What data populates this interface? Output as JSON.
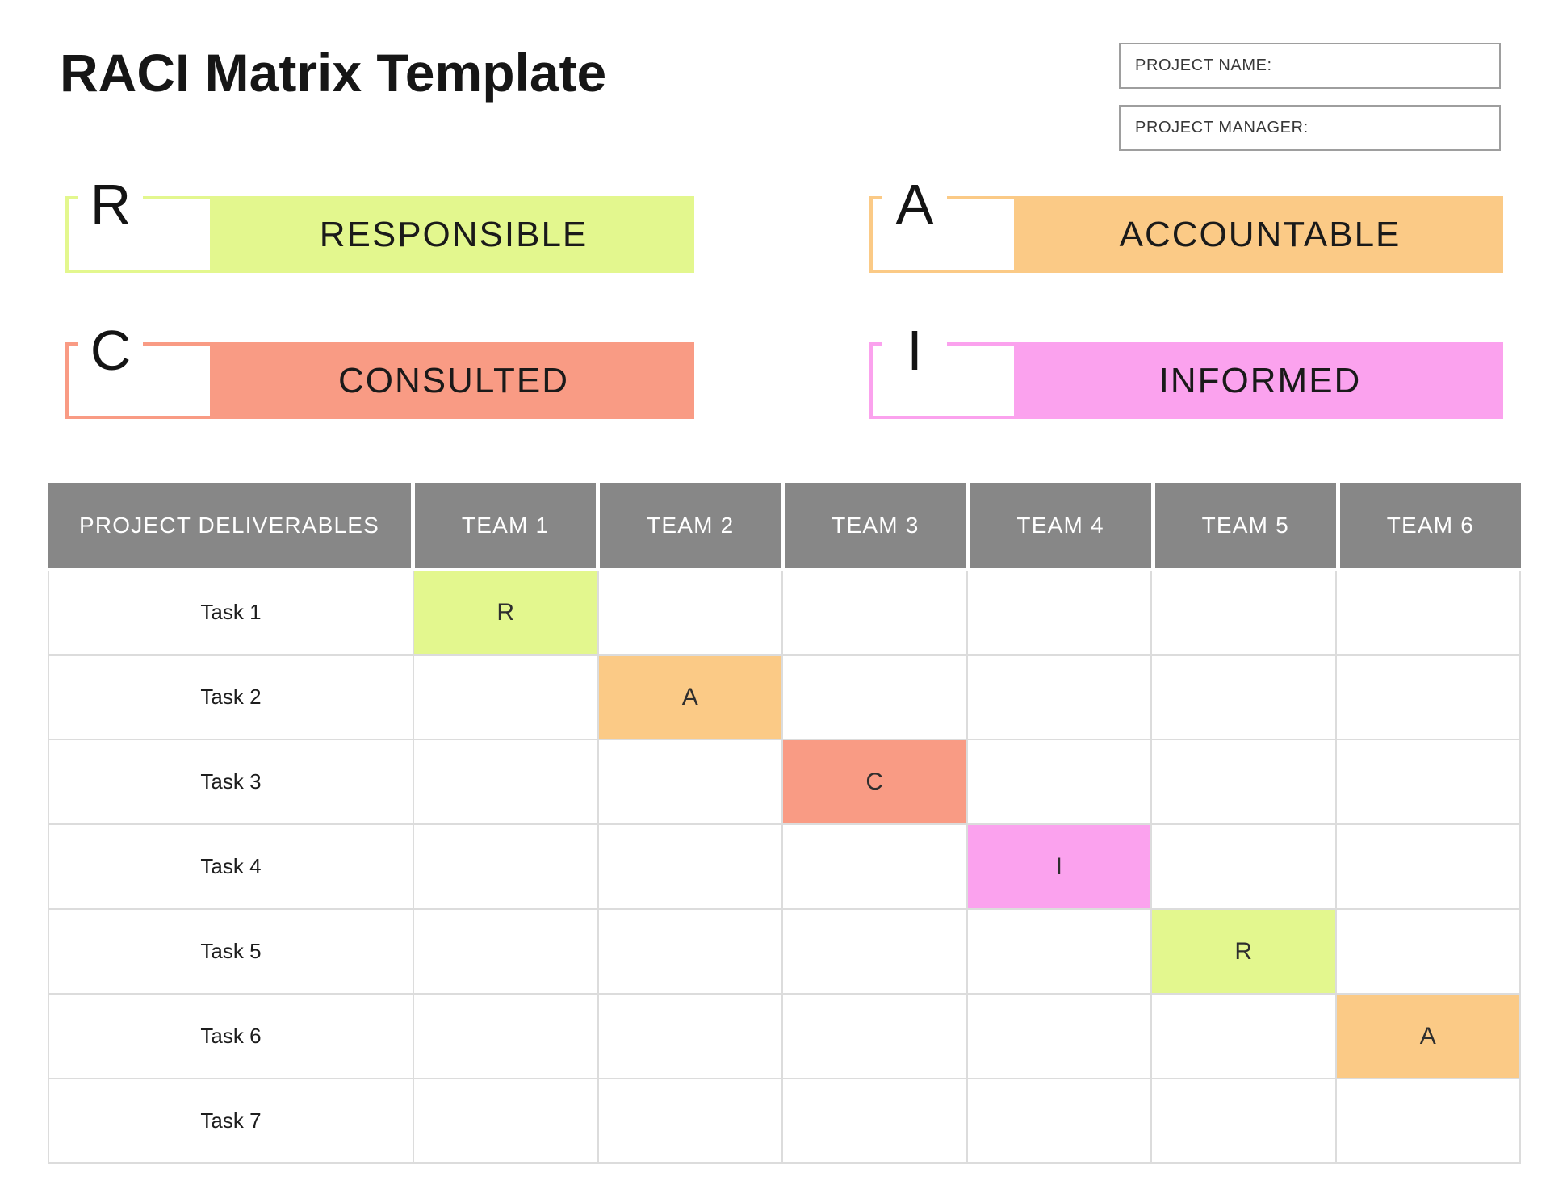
{
  "title": "RACI Matrix Template",
  "fields": [
    {
      "label": "PROJECT NAME:",
      "value": ""
    },
    {
      "label": "PROJECT MANAGER:",
      "value": ""
    }
  ],
  "legend": [
    {
      "letter": "R",
      "label": "RESPONSIBLE",
      "color": "#e3f78e"
    },
    {
      "letter": "A",
      "label": "ACCOUNTABLE",
      "color": "#fbca86"
    },
    {
      "letter": "C",
      "label": "CONSULTED",
      "color": "#f99b84"
    },
    {
      "letter": "I",
      "label": "INFORMED",
      "color": "#fba2ee"
    }
  ],
  "table": {
    "headers": [
      "PROJECT DELIVERABLES",
      "TEAM 1",
      "TEAM 2",
      "TEAM 3",
      "TEAM 4",
      "TEAM 5",
      "TEAM 6"
    ],
    "rows": [
      {
        "task": "Task 1",
        "cells": [
          "R",
          "",
          "",
          "",
          "",
          ""
        ]
      },
      {
        "task": "Task 2",
        "cells": [
          "",
          "A",
          "",
          "",
          "",
          ""
        ]
      },
      {
        "task": "Task 3",
        "cells": [
          "",
          "",
          "C",
          "",
          "",
          ""
        ]
      },
      {
        "task": "Task 4",
        "cells": [
          "",
          "",
          "",
          "I",
          "",
          ""
        ]
      },
      {
        "task": "Task 5",
        "cells": [
          "",
          "",
          "",
          "",
          "R",
          ""
        ]
      },
      {
        "task": "Task 6",
        "cells": [
          "",
          "",
          "",
          "",
          "",
          "A"
        ]
      },
      {
        "task": "Task 7",
        "cells": [
          "",
          "",
          "",
          "",
          "",
          ""
        ]
      }
    ]
  },
  "colors": {
    "header_bg": "#878787",
    "header_text": "#ffffff",
    "grid_line": "#dcdcdc",
    "field_box_border": "#9e9e9e",
    "text": "#1c1c1c"
  }
}
